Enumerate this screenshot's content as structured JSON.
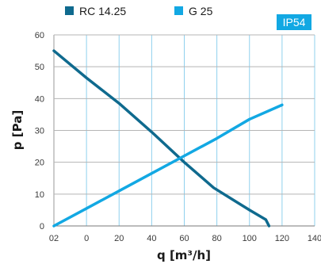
{
  "chart_data": {
    "type": "line",
    "xlabel": "q [m³/h]",
    "ylabel": "p [Pa]",
    "xlim": [
      -20,
      140
    ],
    "ylim": [
      0,
      60
    ],
    "x_tick_labels": [
      "02",
      "0",
      "20",
      "40",
      "60",
      "80",
      "100",
      "120",
      "140"
    ],
    "y_tick_labels": [
      "0",
      "10",
      "20",
      "30",
      "40",
      "50",
      "60"
    ],
    "grid": true,
    "legend_position": "top-left",
    "badge": "IP54",
    "series": [
      {
        "name": "RC 14.25",
        "color": "#0f6a8e",
        "points": [
          [
            -20,
            55
          ],
          [
            0,
            46.5
          ],
          [
            20,
            38.5
          ],
          [
            40,
            29.5
          ],
          [
            60,
            20
          ],
          [
            78,
            12
          ],
          [
            100,
            5
          ],
          [
            110,
            2
          ],
          [
            112,
            0
          ]
        ]
      },
      {
        "name": "G 25",
        "color": "#12a8e3",
        "points": [
          [
            -20,
            0
          ],
          [
            0,
            5.5
          ],
          [
            20,
            11
          ],
          [
            40,
            16.5
          ],
          [
            60,
            22
          ],
          [
            80,
            27.5
          ],
          [
            100,
            33.5
          ],
          [
            120,
            38
          ]
        ]
      }
    ]
  },
  "colors": {
    "badge_bg": "#12a8e3",
    "grid_v": "#8fd0ee",
    "grid_h": "#b5b5b5"
  }
}
